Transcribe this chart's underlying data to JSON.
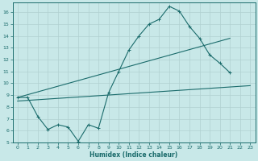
{
  "xlabel": "Humidex (Indice chaleur)",
  "bg_color": "#c8e8e8",
  "line_color": "#1a6b6b",
  "grid_color": "#b0d0d0",
  "xlim": [
    -0.5,
    23.5
  ],
  "ylim": [
    5,
    16.8
  ],
  "yticks": [
    5,
    6,
    7,
    8,
    9,
    10,
    11,
    12,
    13,
    14,
    15,
    16
  ],
  "xticks": [
    0,
    1,
    2,
    3,
    4,
    5,
    6,
    7,
    8,
    9,
    10,
    11,
    12,
    13,
    14,
    15,
    16,
    17,
    18,
    19,
    20,
    21,
    22,
    23
  ],
  "series1_x": [
    0,
    1,
    2,
    3,
    4,
    5,
    6,
    7,
    8,
    9,
    10,
    11,
    12,
    13,
    14,
    15,
    16,
    17,
    18,
    19,
    20,
    21
  ],
  "series1_y": [
    8.8,
    8.8,
    7.2,
    6.1,
    6.5,
    6.3,
    5.1,
    6.5,
    6.2,
    9.2,
    11.0,
    12.8,
    14.0,
    15.0,
    15.4,
    16.5,
    16.1,
    14.8,
    13.8,
    12.4,
    11.7,
    10.9
  ],
  "series2_x": [
    0,
    21
  ],
  "series2_y": [
    8.8,
    13.8
  ],
  "series3_x": [
    0,
    23
  ],
  "series3_y": [
    8.5,
    9.8
  ],
  "marker_x": [
    0,
    1,
    2,
    3,
    4,
    5,
    6,
    7,
    8,
    9,
    10,
    11,
    12,
    13,
    14,
    15,
    16,
    17,
    18,
    19,
    20,
    21
  ],
  "marker_y": [
    8.8,
    8.8,
    7.2,
    6.1,
    6.5,
    6.3,
    5.1,
    6.5,
    6.2,
    9.2,
    11.0,
    12.8,
    14.0,
    15.0,
    15.4,
    16.5,
    16.1,
    14.8,
    13.8,
    12.4,
    11.7,
    10.9
  ]
}
